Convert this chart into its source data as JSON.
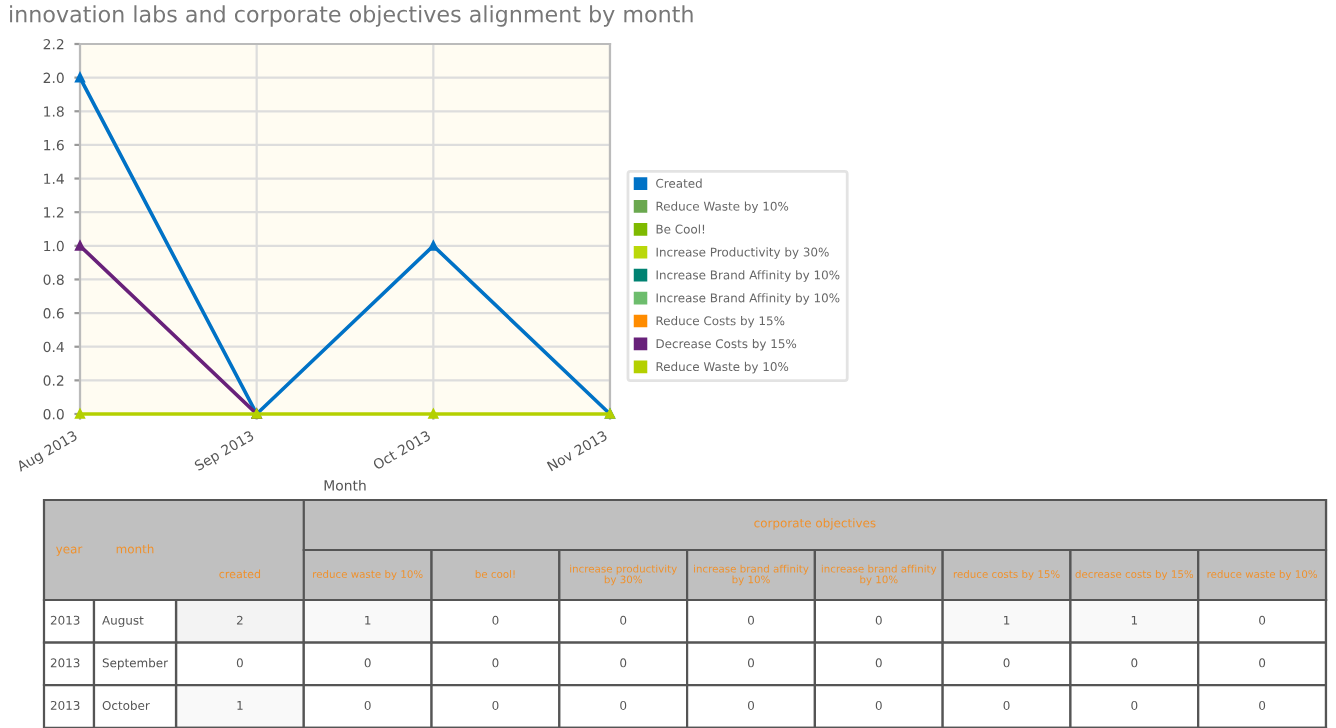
{
  "chart_data": [
    {
      "type": "line",
      "title": "innovation labs and corporate objectives alignment by month",
      "xlabel": "Month",
      "categories": [
        "Aug 2013",
        "Sep 2013",
        "Oct 2013",
        "Nov 2013"
      ],
      "series": [
        {
          "name": "Created",
          "color": "#0072c6",
          "values": [
            2,
            0,
            1,
            0
          ]
        },
        {
          "name": "Reduce Waste by 10%",
          "color": "#6aa84f",
          "values": [
            null,
            null,
            null,
            null
          ]
        },
        {
          "name": "Be Cool!",
          "color": "#7fba00",
          "values": [
            null,
            null,
            null,
            null
          ]
        },
        {
          "name": "Increase Productivity by 30%",
          "color": "#bad80a",
          "values": [
            null,
            null,
            null,
            null
          ]
        },
        {
          "name": "Increase Brand Affinity by 10%",
          "color": "#008272",
          "values": [
            null,
            null,
            null,
            null
          ]
        },
        {
          "name": "Increase Brand Affinity by 10%",
          "color": "#6dbd6d",
          "values": [
            null,
            null,
            null,
            null
          ]
        },
        {
          "name": "Reduce Costs by 15%",
          "color": "#ff8c00",
          "values": [
            null,
            null,
            null,
            null
          ]
        },
        {
          "name": "Decrease Costs by 15%",
          "color": "#68217a",
          "values": [
            1,
            0,
            null,
            null
          ]
        },
        {
          "name": "Reduce Waste by 10%",
          "color": "#b4d000",
          "values": [
            0,
            0,
            0,
            0
          ]
        }
      ],
      "ylim": [
        0,
        2.2
      ],
      "yticks": [
        {
          "value": 0,
          "label": "0.0"
        },
        {
          "value": 0.2,
          "label": "0.2"
        },
        {
          "value": 0.4,
          "label": "0.4"
        },
        {
          "value": 0.6,
          "label": "0.6"
        },
        {
          "value": 0.8,
          "label": "0.8"
        },
        {
          "value": 1,
          "label": "1.0"
        },
        {
          "value": 1.2,
          "label": "1.2"
        },
        {
          "value": 1.4,
          "label": "1.4"
        },
        {
          "value": 1.6,
          "label": "1.6"
        },
        {
          "value": 1.8,
          "label": "1.8"
        },
        {
          "value": 2,
          "label": "2.0"
        },
        {
          "value": 2.2,
          "label": "2.2"
        }
      ],
      "grid": true,
      "legend": "right",
      "marker": "triangle",
      "line_style": "solid"
    },
    {
      "type": "heatmap",
      "ylabel": "year",
      "y2label": "month",
      "categories": [
        "created",
        "reduce waste by 10%",
        "be cool!",
        "increase productivity by 30%",
        "increase brand affinity by 10%",
        "increase brand affinity by 10%",
        "reduce costs by 15%",
        "decrease costs by 15%",
        "reduce waste by 10%"
      ],
      "y_categories": [
        "2013",
        "2013",
        "2013"
      ],
      "y2_categories": [
        "August",
        "September",
        "October"
      ],
      "cells": [
        [
          2,
          1,
          0,
          0,
          0,
          0,
          1,
          1,
          0
        ],
        [
          0,
          0,
          0,
          0,
          0,
          0,
          0,
          0,
          0
        ],
        [
          1,
          0,
          0,
          0,
          0,
          0,
          0,
          0,
          0
        ]
      ],
      "cell_labels": [
        [
          "2",
          "1",
          "0",
          "0",
          "0",
          "0",
          "1",
          "1",
          "0"
        ],
        [
          "0",
          "0",
          "0",
          "0",
          "0",
          "0",
          "0",
          "0",
          "0"
        ],
        [
          "1",
          "0",
          "0",
          "0",
          "0",
          "0",
          "0",
          "0",
          "0"
        ]
      ],
      "annotations": [
        "corporate objectives"
      ]
    }
  ]
}
